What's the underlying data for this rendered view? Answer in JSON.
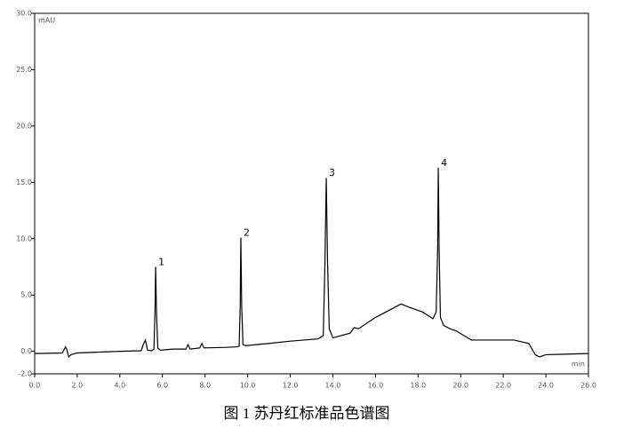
{
  "chart_data": {
    "type": "line",
    "y_unit_label": "mAU",
    "x_unit_label": "min",
    "caption": "图 1  苏丹红标准品色谱图",
    "x": [
      0,
      1.3,
      1.45,
      1.5,
      1.6,
      1.7,
      2.0,
      4.0,
      5.0,
      5.1,
      5.2,
      5.3,
      5.5,
      5.6,
      5.65,
      5.68,
      5.72,
      5.78,
      5.9,
      6.5,
      7.1,
      7.2,
      7.3,
      7.75,
      7.85,
      7.95,
      9.0,
      9.5,
      9.6,
      9.65,
      9.68,
      9.72,
      9.78,
      9.9,
      11,
      12,
      13.3,
      13.55,
      13.63,
      13.69,
      13.75,
      13.83,
      14.0,
      14.8,
      15.0,
      15.2,
      16,
      16.8,
      17.2,
      17.6,
      18.2,
      18.7,
      18.85,
      18.92,
      18.95,
      18.99,
      19.05,
      19.2,
      19.5,
      19.8,
      20.5,
      21.5,
      22.5,
      23.2,
      23.5,
      23.7,
      24,
      26
    ],
    "values": [
      -0.2,
      -0.15,
      0.4,
      0.2,
      -0.5,
      -0.3,
      -0.15,
      0,
      0.05,
      0.6,
      1.0,
      0.1,
      0.05,
      0.2,
      3.5,
      7.5,
      3.5,
      0.3,
      0.1,
      0.2,
      0.2,
      0.6,
      0.2,
      0.3,
      0.7,
      0.3,
      0.35,
      0.4,
      0.45,
      4,
      10.1,
      4,
      0.6,
      0.5,
      0.7,
      0.9,
      1.1,
      1.4,
      8,
      15.4,
      8,
      2,
      1.2,
      1.6,
      2.1,
      2.0,
      3.0,
      3.8,
      4.2,
      3.9,
      3.5,
      2.9,
      3.5,
      9,
      16.3,
      9,
      3,
      2.3,
      2.0,
      1.8,
      1.0,
      1.0,
      1.0,
      0.7,
      -0.3,
      -0.5,
      -0.3,
      -0.2
    ],
    "color": "#000000",
    "annotations": [
      {
        "text": "1",
        "x": 5.68,
        "y": 7.5
      },
      {
        "text": "2",
        "x": 9.68,
        "y": 10.1
      },
      {
        "text": "3",
        "x": 13.69,
        "y": 15.4
      },
      {
        "text": "4",
        "x": 18.95,
        "y": 16.3
      }
    ],
    "xlim": [
      0,
      26
    ],
    "xticks": [
      {
        "value": 0,
        "label": "0.0"
      },
      {
        "value": 2,
        "label": "2.0"
      },
      {
        "value": 4,
        "label": "4.0"
      },
      {
        "value": 6,
        "label": "6.0"
      },
      {
        "value": 8,
        "label": "8.0"
      },
      {
        "value": 10,
        "label": "10.0"
      },
      {
        "value": 12,
        "label": "12.0"
      },
      {
        "value": 14,
        "label": "14.0"
      },
      {
        "value": 16,
        "label": "16.0"
      },
      {
        "value": 18,
        "label": "18.0"
      },
      {
        "value": 20,
        "label": "20.0"
      },
      {
        "value": 22,
        "label": "22.0"
      },
      {
        "value": 24,
        "label": "24.0"
      },
      {
        "value": 26,
        "label": "26.0"
      }
    ],
    "ylim": [
      -2,
      30
    ],
    "yticks": [
      {
        "value": -2,
        "label": "-2.0"
      },
      {
        "value": 0,
        "label": "0.0"
      },
      {
        "value": 5,
        "label": "5.0"
      },
      {
        "value": 10,
        "label": "10.0"
      },
      {
        "value": 15,
        "label": "15.0"
      },
      {
        "value": 20,
        "label": "20.0"
      },
      {
        "value": 25,
        "label": "25.0"
      },
      {
        "value": 30,
        "label": "30.0"
      }
    ]
  }
}
